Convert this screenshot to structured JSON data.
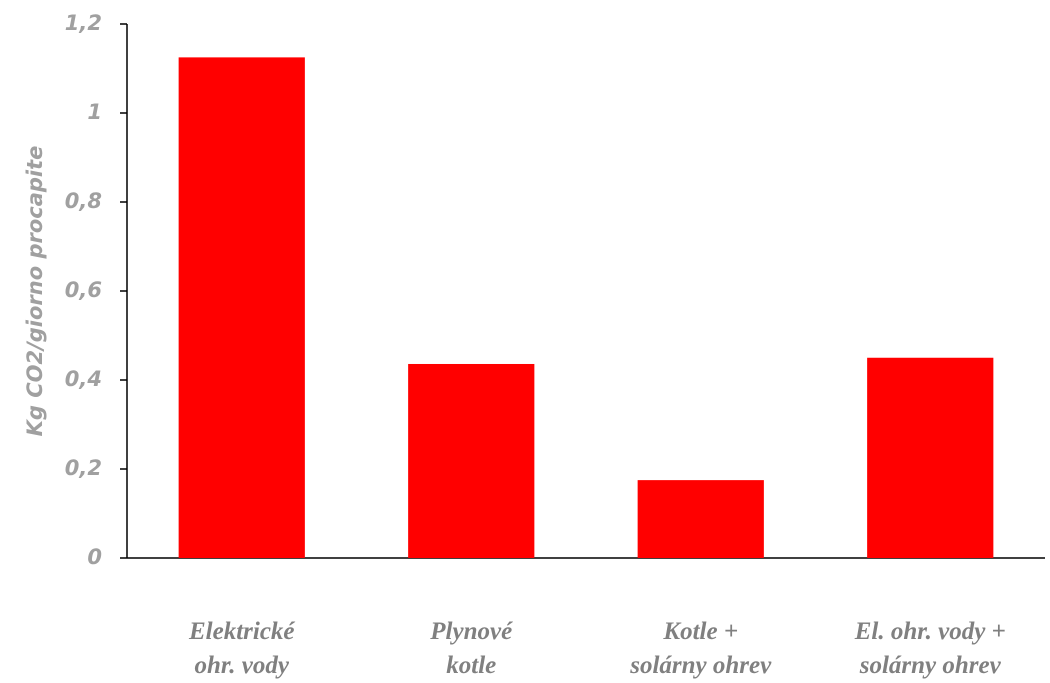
{
  "chart_data": {
    "type": "bar",
    "y_label": "Kg CO2/giorno procapite",
    "categories": [
      "Elektrické\nohr. vody",
      "Plynové\nkotle",
      "Kotle +\nsolárny ohrev",
      "El. ohr. vody +\nsolárny ohrev"
    ],
    "values": [
      1.125,
      0.436,
      0.175,
      0.45
    ],
    "color": "#ff0000",
    "ylim": [
      0,
      1.2
    ],
    "yticks": [
      0,
      {
        "value": 0.2,
        "label": "0,2"
      },
      {
        "value": 0.4,
        "label": "0,4"
      },
      {
        "value": 0.6,
        "label": "0,6"
      },
      {
        "value": 0.8,
        "label": "0,8"
      },
      1,
      {
        "value": 1.2,
        "label": "1,2"
      }
    ],
    "grid": false
  }
}
